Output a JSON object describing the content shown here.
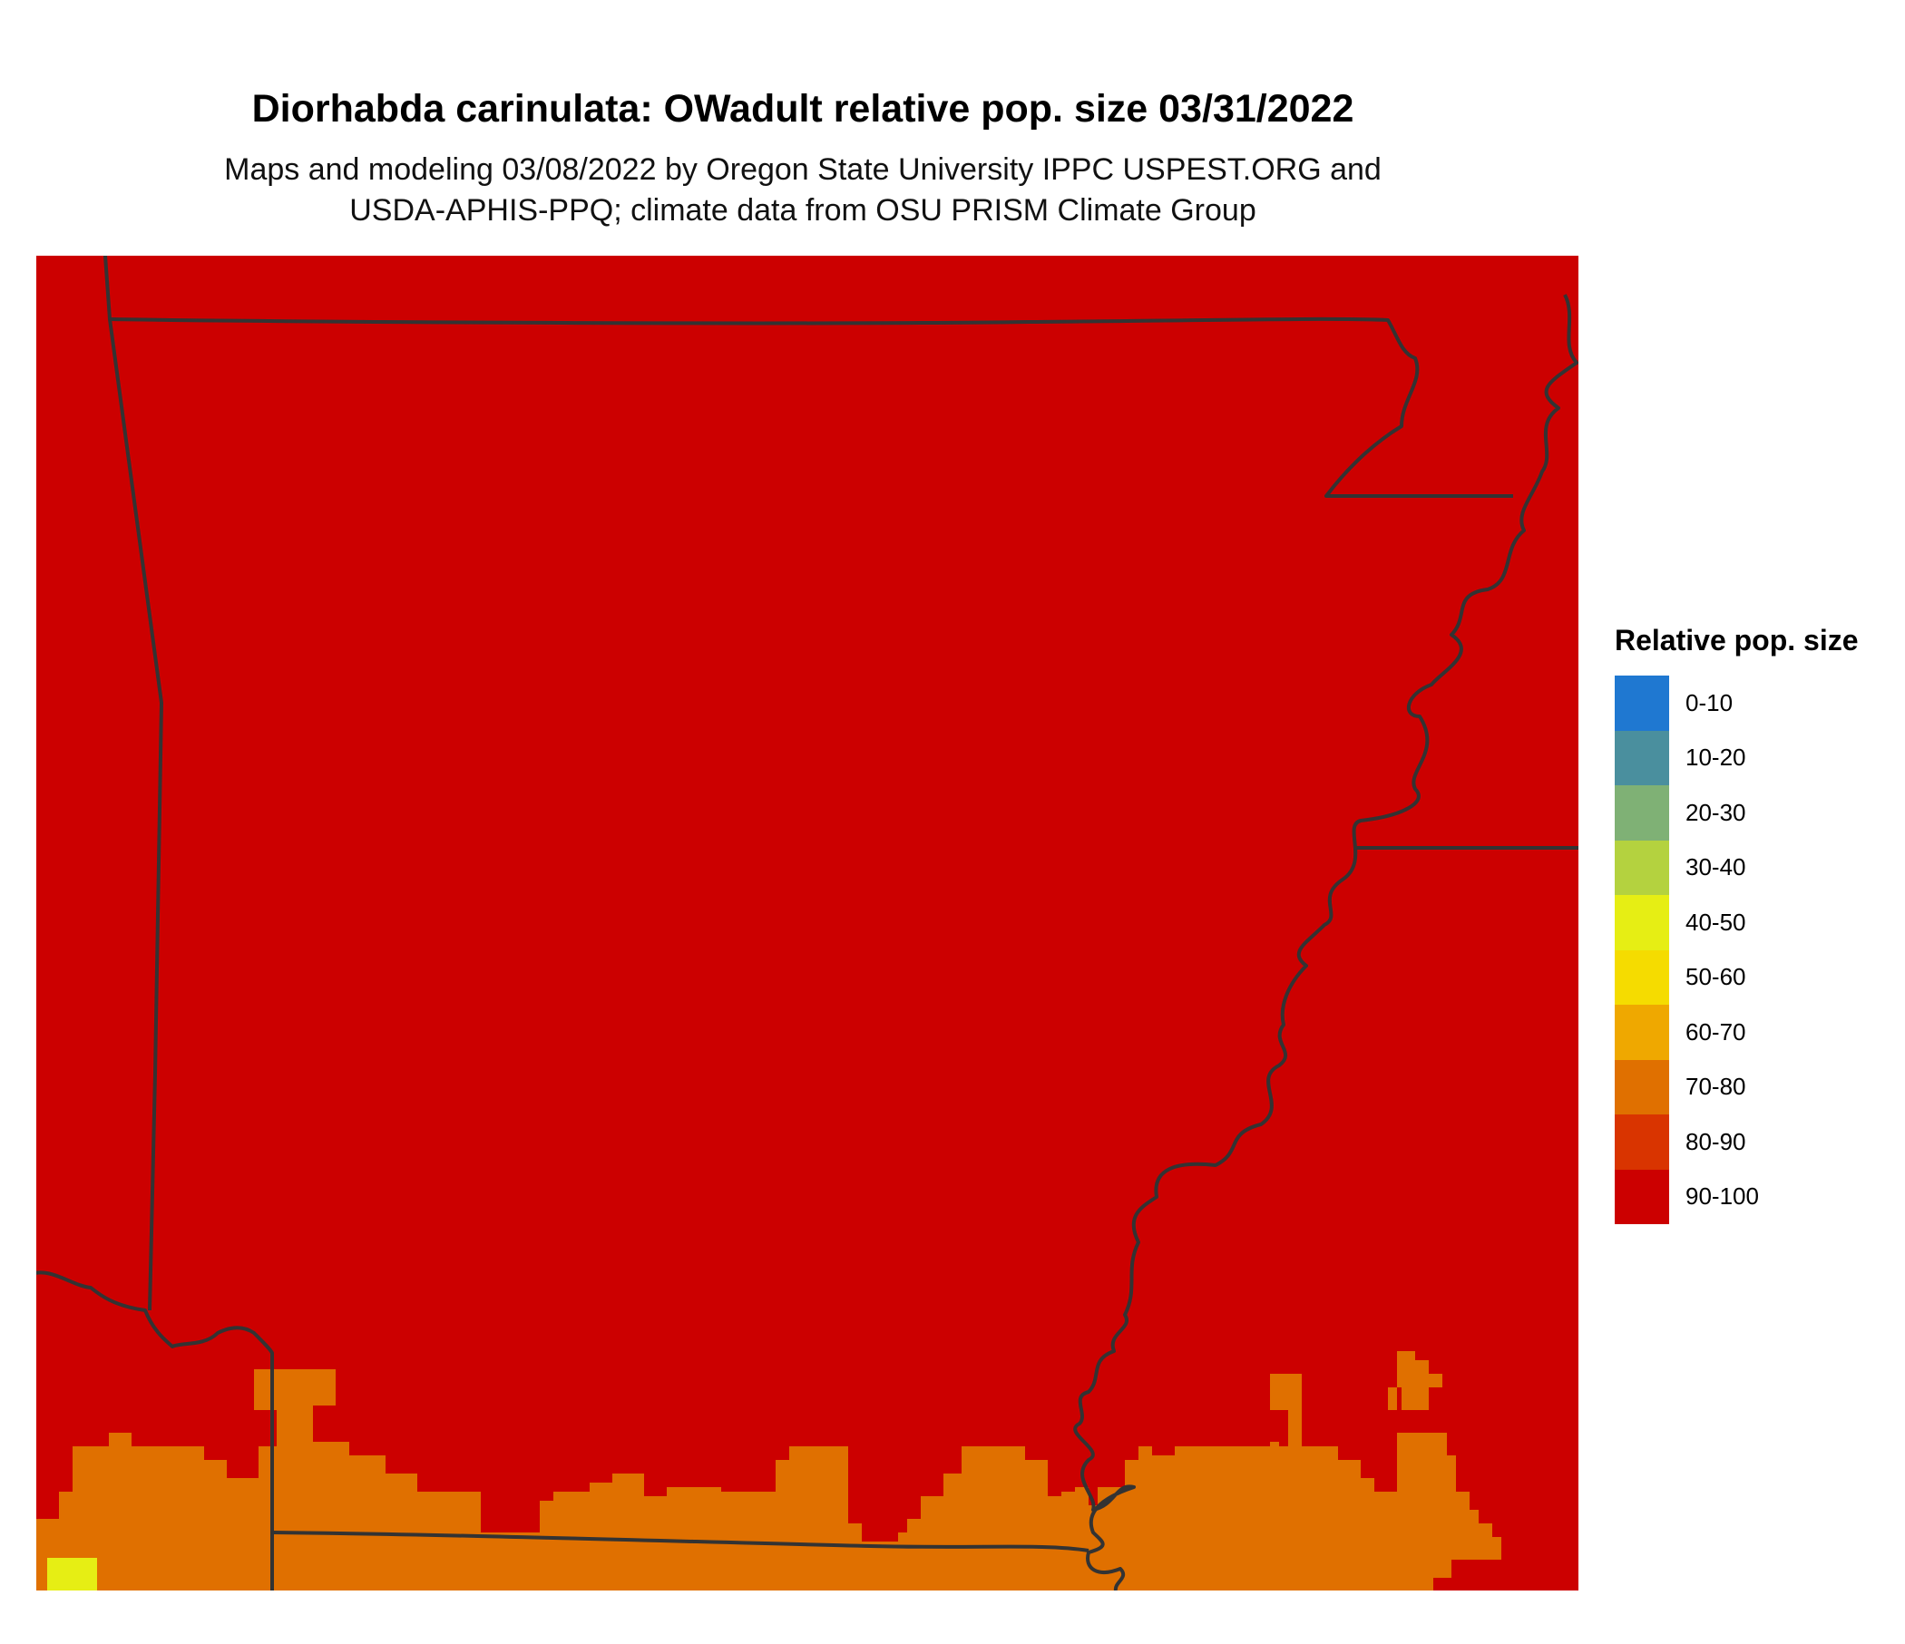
{
  "title": "Diorhabda carinulata: OWadult relative pop. size 03/31/2022",
  "subtitle_line1": "Maps and modeling 03/08/2022 by Oregon State University IPPC USPEST.ORG and",
  "subtitle_line2": "USDA-APHIS-PPQ; climate data from OSU PRISM Climate Group",
  "legend": {
    "title": "Relative pop. size",
    "items": [
      {
        "label": "0-10",
        "color": "#1f78d1"
      },
      {
        "label": "10-20",
        "color": "#4a8f9e"
      },
      {
        "label": "20-30",
        "color": "#7fb175"
      },
      {
        "label": "30-40",
        "color": "#b4d23f"
      },
      {
        "label": "40-50",
        "color": "#e6ee14"
      },
      {
        "label": "50-60",
        "color": "#f5dc00"
      },
      {
        "label": "60-70",
        "color": "#efa800"
      },
      {
        "label": "70-80",
        "color": "#e07000"
      },
      {
        "label": "80-90",
        "color": "#d93400"
      },
      {
        "label": "90-100",
        "color": "#cc0000"
      }
    ]
  },
  "map": {
    "dominant_class": "90-100",
    "southern_band_class": "70-80",
    "southwest_corner_class": "40-50",
    "background_color": "#cc0000",
    "band_color": "#e07000",
    "spot_color": "#e6ee14",
    "boundary_color": "#333333"
  }
}
